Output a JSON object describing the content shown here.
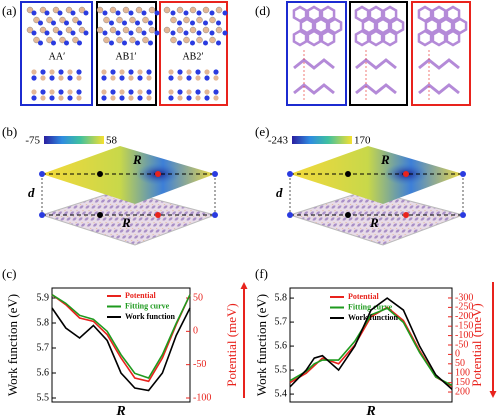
{
  "panel_labels": [
    "(a)",
    "(b)",
    "(c)",
    "(d)",
    "(e)",
    "(f)"
  ],
  "stackings": [
    "AA′",
    "AB1′",
    "AB2′"
  ],
  "colorbars": [
    {
      "min": -75,
      "max": 58
    },
    {
      "min": -243,
      "max": 170
    }
  ],
  "surfaces": [
    {
      "top": "R",
      "bottom": "R",
      "gap": "d"
    },
    {
      "top": "R",
      "bottom": "R",
      "gap": "d"
    }
  ],
  "chart_data": [
    {
      "type": "line",
      "x_label": "R",
      "y_label": "Work function (eV)",
      "y2_label": "Potential (meV)",
      "x": [
        0,
        0.1,
        0.2,
        0.3,
        0.4,
        0.5,
        0.6,
        0.7,
        0.8,
        0.9,
        1
      ],
      "xlim": [
        0,
        1
      ],
      "ylim": [
        5.484,
        5.94
      ],
      "yticks": [
        5.5,
        5.6,
        5.7,
        5.8,
        5.9
      ],
      "y2lim": [
        -106,
        65
      ],
      "y2ticks": [
        50,
        0,
        -50,
        -100
      ],
      "series": [
        {
          "name": "Potential",
          "color": "#e8231d",
          "axis": "y2",
          "values": [
            55,
            40,
            20,
            15,
            -5,
            -40,
            -70,
            -75,
            -40,
            10,
            55
          ]
        },
        {
          "name": "Fitting curve",
          "color": "#1e9a1e",
          "axis": "y2",
          "values": [
            55,
            42,
            24,
            18,
            0,
            -35,
            -63,
            -70,
            -35,
            12,
            55
          ]
        },
        {
          "name": "Work function",
          "color": "#000000",
          "values": [
            5.86,
            5.78,
            5.74,
            5.79,
            5.73,
            5.6,
            5.54,
            5.53,
            5.6,
            5.75,
            5.86
          ]
        }
      ]
    },
    {
      "type": "line",
      "x_label": "R",
      "y_label": "Work function (eV)",
      "y2_label": "Potential (meV)",
      "x": [
        0,
        0.1,
        0.15,
        0.2,
        0.3,
        0.4,
        0.5,
        0.6,
        0.7,
        0.8,
        0.9,
        1
      ],
      "xlim": [
        0,
        1
      ],
      "ylim": [
        5.367,
        5.842
      ],
      "yticks": [
        5.4,
        5.5,
        5.6,
        5.7,
        5.8
      ],
      "y2lim": [
        253,
        -353
      ],
      "y2ticks": [
        -300,
        -250,
        -200,
        -150,
        -100,
        -50,
        0,
        50,
        100,
        150,
        200
      ],
      "series": [
        {
          "name": "Potential",
          "color": "#e8231d",
          "axis": "y2",
          "values": [
            150,
            100,
            60,
            20,
            50,
            -50,
            -200,
            -250,
            -180,
            -20,
            120,
            170
          ]
        },
        {
          "name": "Fitting curve",
          "color": "#1e9a1e",
          "axis": "y2",
          "values": [
            140,
            90,
            50,
            30,
            30,
            -70,
            -210,
            -245,
            -170,
            -10,
            120,
            165
          ]
        },
        {
          "name": "Work function",
          "color": "#000000",
          "values": [
            5.43,
            5.5,
            5.55,
            5.56,
            5.5,
            5.6,
            5.75,
            5.8,
            5.75,
            5.6,
            5.48,
            5.42
          ]
        }
      ]
    }
  ]
}
